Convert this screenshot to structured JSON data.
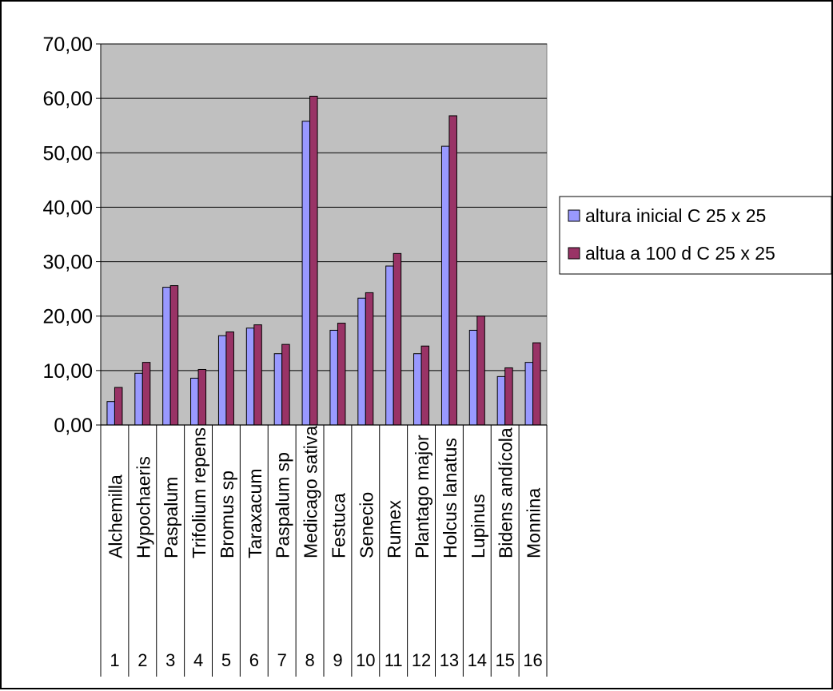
{
  "chart_data": {
    "type": "bar",
    "title": "",
    "xlabel": "",
    "ylabel": "",
    "ylim": [
      0,
      70
    ],
    "yticks": [
      "0,00",
      "10,00",
      "20,00",
      "30,00",
      "40,00",
      "50,00",
      "60,00",
      "70,00"
    ],
    "grid": true,
    "legend_position": "right",
    "categories": [
      {
        "name": "Alchemilla",
        "num": "1"
      },
      {
        "name": "Hypochaeris",
        "num": "2"
      },
      {
        "name": "Paspalum",
        "num": "3"
      },
      {
        "name": "Trifolium repens",
        "num": "4"
      },
      {
        "name": "Bromus sp",
        "num": "5"
      },
      {
        "name": "Taraxacum",
        "num": "6"
      },
      {
        "name": "Paspalum sp",
        "num": "7"
      },
      {
        "name": "Medicago sativa",
        "num": "8"
      },
      {
        "name": "Festuca",
        "num": "9"
      },
      {
        "name": "Senecio",
        "num": "10"
      },
      {
        "name": "Rumex",
        "num": "11"
      },
      {
        "name": "Plantago major",
        "num": "12"
      },
      {
        "name": "Holcus lanatus",
        "num": "13"
      },
      {
        "name": "Lupinus",
        "num": "14"
      },
      {
        "name": "Bidens andícola",
        "num": "15"
      },
      {
        "name": "Monnina",
        "num": "16"
      }
    ],
    "series": [
      {
        "name": "altura inicial C 25 x 25",
        "color": "#9999ff",
        "values": [
          4.3,
          9.5,
          25.3,
          8.6,
          16.4,
          17.8,
          13.1,
          55.8,
          17.4,
          23.3,
          29.2,
          13.1,
          51.2,
          17.4,
          8.9,
          11.5
        ]
      },
      {
        "name": "altua a 100 d C 25 x 25",
        "color": "#993366",
        "values": [
          6.9,
          11.5,
          25.6,
          10.2,
          17.1,
          18.4,
          14.8,
          60.4,
          18.7,
          24.3,
          31.5,
          14.5,
          56.8,
          20.0,
          10.5,
          15.1
        ]
      }
    ],
    "plot_background": "#c0c0c0"
  }
}
